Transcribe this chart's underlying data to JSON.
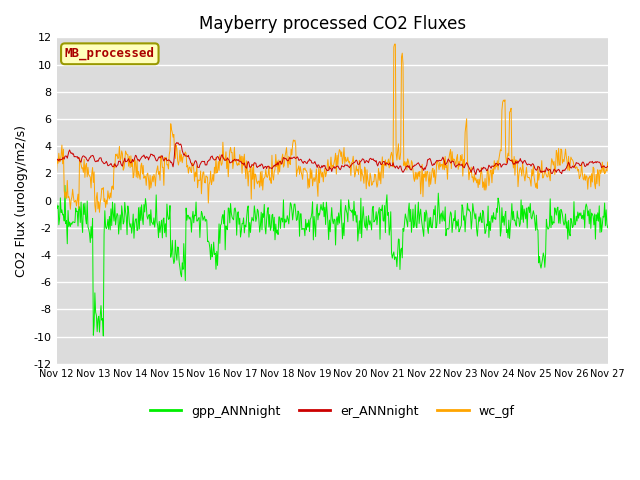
{
  "title": "Mayberry processed CO2 Fluxes",
  "ylabel": "CO2 Flux (urology/m2/s)",
  "ylim": [
    -12,
    12
  ],
  "yticks": [
    -12,
    -10,
    -8,
    -6,
    -4,
    -2,
    0,
    2,
    4,
    6,
    8,
    10,
    12
  ],
  "n_days": 15,
  "xtick_labels": [
    "Nov 12",
    "Nov 13",
    "Nov 14",
    "Nov 15",
    "Nov 16",
    "Nov 17",
    "Nov 18",
    "Nov 19",
    "Nov 20",
    "Nov 21",
    "Nov 22",
    "Nov 23",
    "Nov 24",
    "Nov 25",
    "Nov 26",
    "Nov 27"
  ],
  "line_colors": {
    "gpp": "#00ee00",
    "er": "#cc0000",
    "wc": "#ffa500"
  },
  "legend_labels": [
    "gpp_ANNnight",
    "er_ANNnight",
    "wc_gf"
  ],
  "inset_label": "MB_processed",
  "inset_text_color": "#aa0000",
  "inset_bg_color": "#ffffbb",
  "inset_edge_color": "#999900",
  "background_color": "#dcdcdc",
  "fig_bg_color": "#ffffff",
  "title_fontsize": 12,
  "axis_fontsize": 9,
  "tick_fontsize": 8,
  "legend_fontsize": 9
}
